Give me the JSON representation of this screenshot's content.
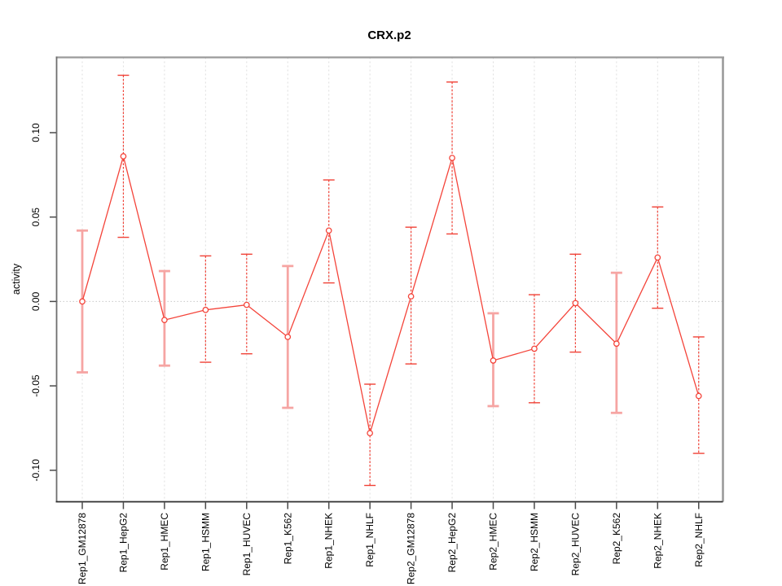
{
  "chart_data": {
    "type": "line",
    "title": "CRX.p2",
    "ylabel": "activity",
    "xlabel": "",
    "categories": [
      "Rep1_GM12878",
      "Rep1_HepG2",
      "Rep1_HMEC",
      "Rep1_HSMM",
      "Rep1_HUVEC",
      "Rep1_K562",
      "Rep1_NHEK",
      "Rep1_NHLF",
      "Rep2_GM12878",
      "Rep2_HepG2",
      "Rep2_HMEC",
      "Rep2_HSMM",
      "Rep2_HUVEC",
      "Rep2_K562",
      "Rep2_NHEK",
      "Rep2_NHLF"
    ],
    "series": [
      {
        "name": "activity",
        "marker": "open-circle",
        "values": [
          0.0,
          0.086,
          -0.011,
          -0.005,
          -0.002,
          -0.021,
          0.042,
          -0.078,
          0.003,
          0.085,
          -0.035,
          -0.028,
          -0.001,
          -0.025,
          0.026,
          -0.056
        ],
        "error_low": [
          -0.042,
          0.038,
          -0.038,
          -0.036,
          -0.031,
          -0.063,
          0.011,
          -0.109,
          -0.037,
          0.04,
          -0.062,
          -0.06,
          -0.03,
          -0.066,
          -0.004,
          -0.09
        ],
        "error_high": [
          0.042,
          0.134,
          0.018,
          0.027,
          0.028,
          0.021,
          0.072,
          -0.049,
          0.044,
          0.13,
          -0.007,
          0.004,
          0.028,
          0.017,
          0.056,
          -0.021
        ],
        "bold_error_bar": [
          true,
          false,
          true,
          false,
          false,
          true,
          false,
          false,
          false,
          false,
          true,
          false,
          false,
          true,
          false,
          false
        ]
      }
    ],
    "yticks": [
      {
        "label": "0.10",
        "value": 0.1
      },
      {
        "label": "0.05",
        "value": 0.05
      },
      {
        "label": "0.00",
        "value": 0.0
      },
      {
        "label": "-0.05",
        "value": -0.05
      },
      {
        "label": "-0.10",
        "value": -0.1
      }
    ],
    "ylim": [
      -0.118,
      0.145
    ],
    "grid": {
      "vertical": "dashed line at every category",
      "horizontal": "dotted line at zero only"
    },
    "legend": "none"
  },
  "colors": {
    "line": "#f4443a",
    "marker": "#f4443a",
    "error_bold": "#f6a5a3",
    "error_thin": "#f04237",
    "grid": "#dedede",
    "zero_line": "#c9c9c9",
    "box_light": "#9a9a9a",
    "box_left": "#6e6e6e",
    "box_bottom": "#2e2e2e",
    "tick": "#4a4a4a",
    "text": "#000000",
    "background": "#ffffff"
  }
}
